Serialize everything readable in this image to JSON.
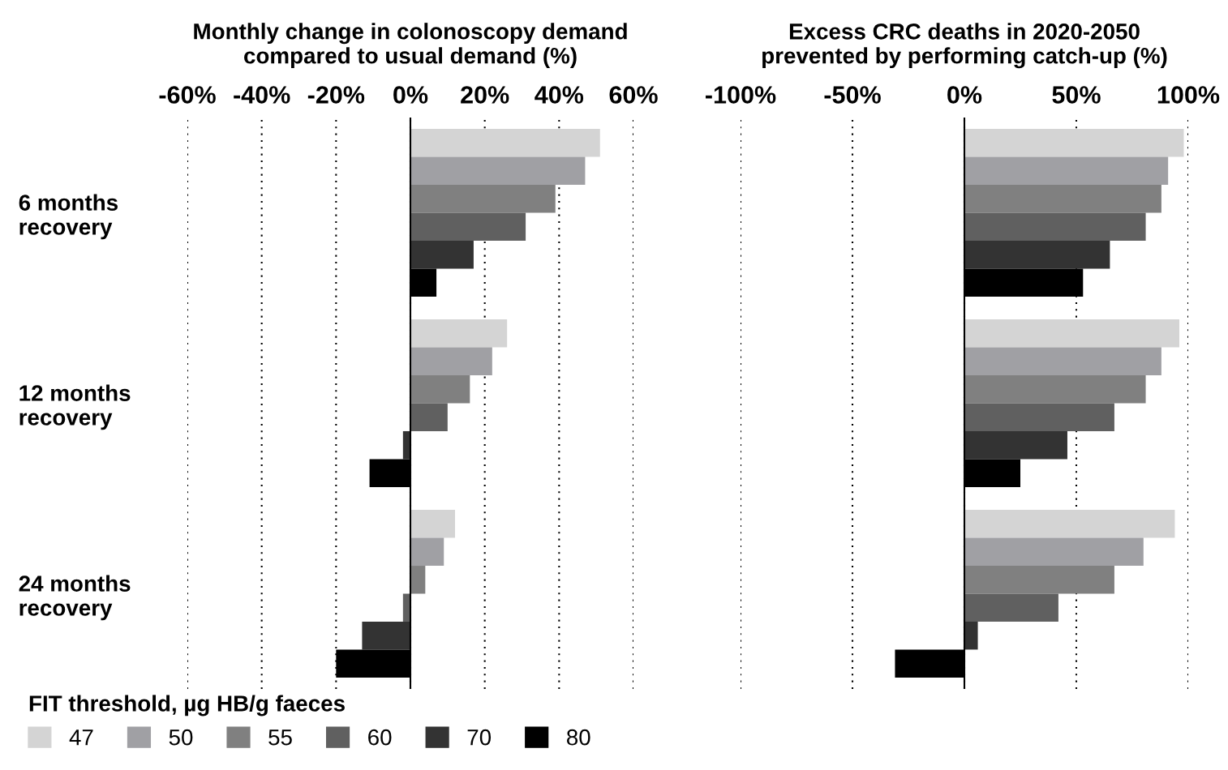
{
  "chart_data": [
    {
      "type": "bar",
      "orientation": "horizontal",
      "title": "Monthly change in colonoscopy demand\ncompared to usual demand (%)",
      "categories": [
        "6 months\nrecovery",
        "12 months\nrecovery",
        "24 months\nrecovery"
      ],
      "series": [
        {
          "name": "47",
          "color": "#d4d4d4",
          "values": [
            51,
            26,
            12
          ]
        },
        {
          "name": "50",
          "color": "#a0a0a4",
          "values": [
            47,
            22,
            9
          ]
        },
        {
          "name": "55",
          "color": "#808080",
          "values": [
            39,
            16,
            4
          ]
        },
        {
          "name": "60",
          "color": "#606060",
          "values": [
            31,
            10,
            -2
          ]
        },
        {
          "name": "70",
          "color": "#333333",
          "values": [
            17,
            -2,
            -13
          ]
        },
        {
          "name": "80",
          "color": "#000000",
          "values": [
            7,
            -11,
            -20
          ]
        }
      ],
      "xlim": [
        -60,
        60
      ],
      "xticks": [
        {
          "value": -60,
          "label": "-60%"
        },
        {
          "value": -40,
          "label": "-40%"
        },
        {
          "value": -20,
          "label": "-20%"
        },
        {
          "value": 0,
          "label": "0%"
        },
        {
          "value": 20,
          "label": "20%"
        },
        {
          "value": 40,
          "label": "40%"
        },
        {
          "value": 60,
          "label": "60%"
        }
      ],
      "grid": "x",
      "legend": "bottom",
      "legend_title": "FIT threshold, µg HB/g faeces"
    },
    {
      "type": "bar",
      "orientation": "horizontal",
      "title": "Excess CRC deaths in 2020-2050\nprevented by performing catch-up (%)",
      "series": [
        {
          "color": "#d4d4d4",
          "values": [
            98,
            96,
            94
          ]
        },
        {
          "color": "#a0a0a4",
          "values": [
            91,
            88,
            80
          ]
        },
        {
          "color": "#808080",
          "values": [
            88,
            81,
            67
          ]
        },
        {
          "color": "#606060",
          "values": [
            81,
            67,
            42
          ]
        },
        {
          "color": "#333333",
          "values": [
            65,
            46,
            6
          ]
        },
        {
          "color": "#000000",
          "values": [
            53,
            25,
            -31
          ]
        }
      ],
      "xlim": [
        -100,
        100
      ],
      "xticks": [
        {
          "value": -100,
          "label": "-100%"
        },
        {
          "value": -50,
          "label": "-50%"
        },
        {
          "value": 0,
          "label": "0%"
        },
        {
          "value": 50,
          "label": "50%"
        },
        {
          "value": 100,
          "label": "100%"
        }
      ],
      "grid": "x",
      "tick_labels": "x"
    }
  ]
}
